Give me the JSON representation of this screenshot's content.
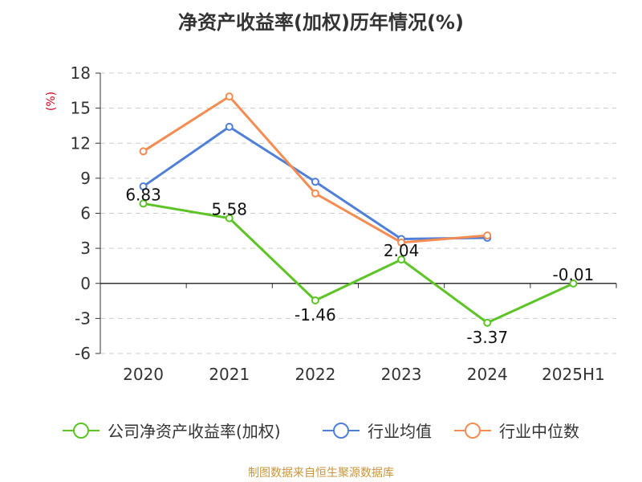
{
  "chart_data": {
    "type": "line",
    "title": "净资产收益率(加权)历年情况(%)",
    "ylabel": "(%)",
    "xlabel": "",
    "categories": [
      "2020",
      "2021",
      "2022",
      "2023",
      "2024",
      "2025H1"
    ],
    "ylim": [
      -6,
      18
    ],
    "yticks": [
      -6,
      -3,
      0,
      3,
      6,
      9,
      12,
      15,
      18
    ],
    "yticks_labels": [
      "-6",
      "-3",
      "0",
      "3",
      "6",
      "9",
      "12",
      "15",
      "18"
    ],
    "grid": true,
    "legend_position": "bottom",
    "series": [
      {
        "name": "公司净资产收益率(加权)",
        "color": "#5cc425",
        "values": [
          6.83,
          5.58,
          -1.46,
          2.04,
          -3.37,
          -0.01
        ],
        "labels": [
          "6.83",
          "5.58",
          "-1.46",
          "2.04",
          "-3.37",
          "-0.01"
        ]
      },
      {
        "name": "行业均值",
        "color": "#4f7fd9",
        "values": [
          8.3,
          13.4,
          8.7,
          3.8,
          3.9,
          null
        ]
      },
      {
        "name": "行业中位数",
        "color": "#f58c51",
        "values": [
          11.3,
          16.0,
          7.7,
          3.5,
          4.1,
          null
        ]
      }
    ]
  },
  "source_note": "制图数据来自恒生聚源数据库"
}
